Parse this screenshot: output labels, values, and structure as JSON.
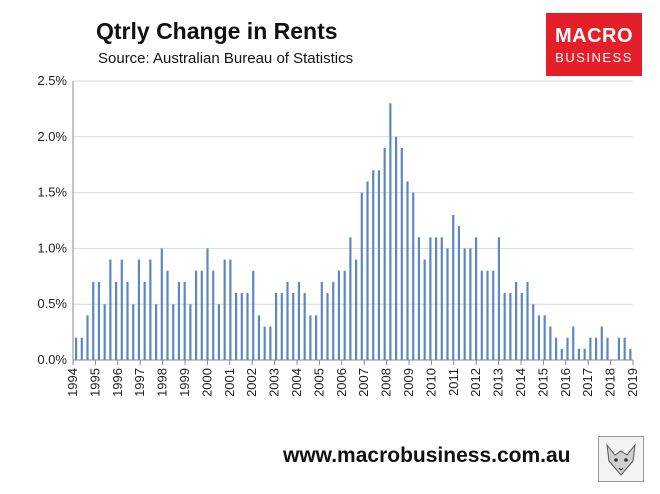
{
  "header": {
    "title": "Qtrly Change in Rents",
    "subtitle": "Source: Australian Bureau of Statistics"
  },
  "logo": {
    "line1": "MACRO",
    "line2": "BUSINESS",
    "color": "#e41f2a"
  },
  "footer": {
    "url": "www.macrobusiness.com.au",
    "icon": "fox-icon"
  },
  "colors": {
    "bar": "#5b86c5",
    "grid": "#d9d9d9",
    "axis": "#888888"
  },
  "chart_data": {
    "type": "bar",
    "title": "Qtrly Change in Rents",
    "xlabel": "",
    "ylabel": "",
    "ylim": [
      0,
      2.5
    ],
    "yticks": [
      "0.0%",
      "0.5%",
      "1.0%",
      "1.5%",
      "2.0%",
      "2.5%"
    ],
    "xticks": [
      "1994",
      "1995",
      "1996",
      "1997",
      "1998",
      "1999",
      "2000",
      "2001",
      "2002",
      "2003",
      "2004",
      "2005",
      "2006",
      "2007",
      "2008",
      "2009",
      "2010",
      "2011",
      "2012",
      "2013",
      "2014",
      "2015",
      "2016",
      "2017",
      "2018",
      "2019"
    ],
    "grid": true,
    "unit": "%",
    "values": [
      0.2,
      0.2,
      0.4,
      0.7,
      0.7,
      0.5,
      0.9,
      0.7,
      0.9,
      0.7,
      0.5,
      0.9,
      0.7,
      0.9,
      0.5,
      1.0,
      0.8,
      0.5,
      0.7,
      0.7,
      0.5,
      0.8,
      0.8,
      1.0,
      0.8,
      0.5,
      0.9,
      0.9,
      0.6,
      0.6,
      0.6,
      0.8,
      0.4,
      0.3,
      0.3,
      0.6,
      0.6,
      0.7,
      0.6,
      0.7,
      0.6,
      0.4,
      0.4,
      0.7,
      0.6,
      0.7,
      0.8,
      0.8,
      1.1,
      0.9,
      1.5,
      1.6,
      1.7,
      1.7,
      1.9,
      2.3,
      2.0,
      1.9,
      1.6,
      1.5,
      1.1,
      0.9,
      1.1,
      1.1,
      1.1,
      1.0,
      1.3,
      1.2,
      1.0,
      1.0,
      1.1,
      0.8,
      0.8,
      0.8,
      1.1,
      0.6,
      0.6,
      0.7,
      0.6,
      0.7,
      0.5,
      0.4,
      0.4,
      0.3,
      0.2,
      0.1,
      0.2,
      0.3,
      0.1,
      0.1,
      0.2,
      0.2,
      0.3,
      0.2,
      0.0,
      0.2,
      0.2,
      0.1
    ]
  }
}
